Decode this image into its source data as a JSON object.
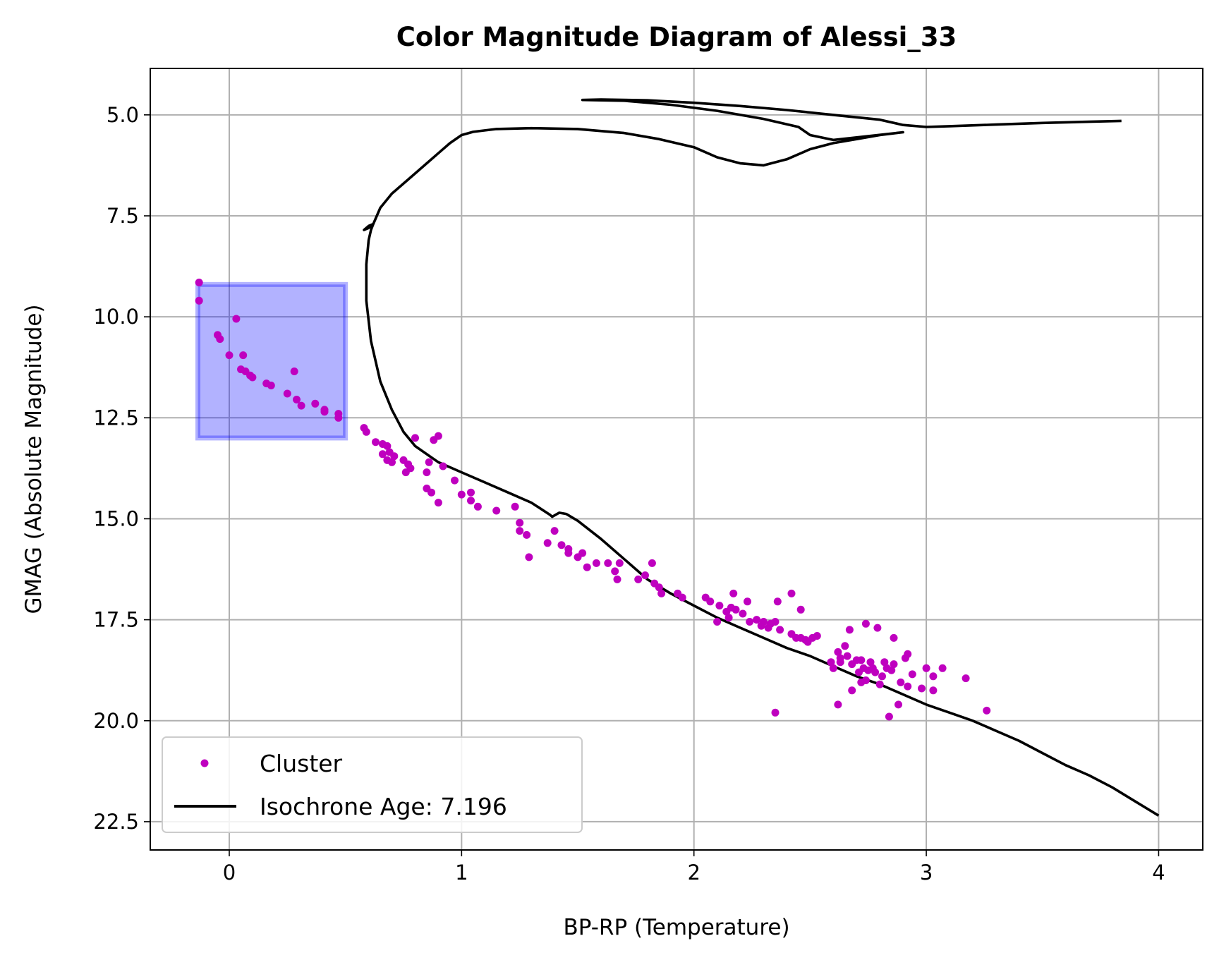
{
  "chart_data": {
    "type": "scatter",
    "title": "Color Magnitude Diagram of Alessi_33",
    "xlabel": "BP-RP (Temperature)",
    "ylabel": "GMAG (Absolute Magnitude)",
    "xlim": [
      -0.34,
      4.19
    ],
    "ylim": [
      23.2,
      3.85
    ],
    "y_inverted": true,
    "grid": true,
    "legend_position": "lower-left",
    "xticks": [
      0,
      1,
      2,
      3,
      4
    ],
    "xtick_labels": [
      "0",
      "1",
      "2",
      "3",
      "4"
    ],
    "yticks": [
      5.0,
      7.5,
      10.0,
      12.5,
      15.0,
      17.5,
      20.0,
      22.5
    ],
    "ytick_labels": [
      "5.0",
      "7.5",
      "10.0",
      "12.5",
      "15.0",
      "17.5",
      "20.0",
      "22.5"
    ],
    "highlight_region": {
      "x": [
        -0.135,
        0.5
      ],
      "y": [
        9.2,
        13.0
      ],
      "color": "#0000ff",
      "alpha": 0.3
    },
    "series": [
      {
        "name": "Cluster",
        "kind": "scatter",
        "color": "#bf00bf",
        "points": [
          [
            -0.13,
            9.15
          ],
          [
            -0.13,
            9.6
          ],
          [
            0.03,
            10.05
          ],
          [
            -0.05,
            10.45
          ],
          [
            -0.04,
            10.55
          ],
          [
            0.0,
            10.95
          ],
          [
            0.06,
            10.95
          ],
          [
            0.05,
            11.3
          ],
          [
            0.07,
            11.35
          ],
          [
            0.09,
            11.45
          ],
          [
            0.1,
            11.5
          ],
          [
            0.28,
            11.35
          ],
          [
            0.16,
            11.65
          ],
          [
            0.18,
            11.7
          ],
          [
            0.25,
            11.9
          ],
          [
            0.29,
            12.05
          ],
          [
            0.31,
            12.2
          ],
          [
            0.37,
            12.15
          ],
          [
            0.41,
            12.3
          ],
          [
            0.41,
            12.35
          ],
          [
            0.47,
            12.4
          ],
          [
            0.47,
            12.5
          ],
          [
            0.58,
            12.75
          ],
          [
            0.59,
            12.85
          ],
          [
            0.63,
            13.1
          ],
          [
            0.66,
            13.15
          ],
          [
            0.68,
            13.2
          ],
          [
            0.66,
            13.4
          ],
          [
            0.69,
            13.35
          ],
          [
            0.71,
            13.45
          ],
          [
            0.68,
            13.55
          ],
          [
            0.7,
            13.6
          ],
          [
            0.75,
            13.55
          ],
          [
            0.77,
            13.65
          ],
          [
            0.76,
            13.85
          ],
          [
            0.78,
            13.75
          ],
          [
            0.8,
            13.0
          ],
          [
            0.88,
            13.05
          ],
          [
            0.9,
            12.95
          ],
          [
            0.86,
            13.6
          ],
          [
            0.92,
            13.7
          ],
          [
            0.85,
            13.85
          ],
          [
            0.85,
            14.25
          ],
          [
            0.87,
            14.35
          ],
          [
            0.9,
            14.6
          ],
          [
            0.97,
            14.05
          ],
          [
            1.0,
            14.4
          ],
          [
            1.04,
            14.35
          ],
          [
            1.04,
            14.55
          ],
          [
            1.07,
            14.7
          ],
          [
            1.15,
            14.8
          ],
          [
            1.23,
            14.7
          ],
          [
            1.25,
            15.1
          ],
          [
            1.25,
            15.3
          ],
          [
            1.28,
            15.4
          ],
          [
            1.29,
            15.95
          ],
          [
            1.37,
            15.6
          ],
          [
            1.4,
            15.3
          ],
          [
            1.43,
            15.65
          ],
          [
            1.46,
            15.75
          ],
          [
            1.46,
            15.85
          ],
          [
            1.5,
            15.95
          ],
          [
            1.52,
            15.85
          ],
          [
            1.54,
            16.2
          ],
          [
            1.58,
            16.1
          ],
          [
            1.63,
            16.1
          ],
          [
            1.66,
            16.3
          ],
          [
            1.67,
            16.5
          ],
          [
            1.68,
            16.1
          ],
          [
            1.76,
            16.5
          ],
          [
            1.79,
            16.4
          ],
          [
            1.82,
            16.1
          ],
          [
            1.83,
            16.6
          ],
          [
            1.85,
            16.7
          ],
          [
            1.86,
            16.85
          ],
          [
            1.93,
            16.85
          ],
          [
            1.95,
            16.95
          ],
          [
            2.05,
            16.95
          ],
          [
            2.07,
            17.05
          ],
          [
            2.1,
            17.55
          ],
          [
            2.11,
            17.15
          ],
          [
            2.14,
            17.3
          ],
          [
            2.15,
            17.45
          ],
          [
            2.16,
            17.2
          ],
          [
            2.18,
            17.25
          ],
          [
            2.21,
            17.35
          ],
          [
            2.23,
            17.05
          ],
          [
            2.17,
            16.85
          ],
          [
            2.24,
            17.55
          ],
          [
            2.27,
            17.5
          ],
          [
            2.29,
            17.65
          ],
          [
            2.3,
            17.55
          ],
          [
            2.32,
            17.7
          ],
          [
            2.33,
            17.6
          ],
          [
            2.35,
            17.55
          ],
          [
            2.37,
            17.75
          ],
          [
            2.36,
            17.05
          ],
          [
            2.42,
            16.85
          ],
          [
            2.46,
            17.25
          ],
          [
            2.42,
            17.85
          ],
          [
            2.44,
            17.95
          ],
          [
            2.46,
            17.95
          ],
          [
            2.49,
            18.05
          ],
          [
            2.51,
            17.95
          ],
          [
            2.53,
            17.9
          ],
          [
            2.48,
            18.0
          ],
          [
            2.35,
            19.8
          ],
          [
            2.59,
            18.55
          ],
          [
            2.6,
            18.7
          ],
          [
            2.62,
            18.3
          ],
          [
            2.63,
            18.55
          ],
          [
            2.63,
            18.45
          ],
          [
            2.65,
            18.15
          ],
          [
            2.66,
            18.4
          ],
          [
            2.68,
            18.6
          ],
          [
            2.67,
            17.75
          ],
          [
            2.7,
            18.5
          ],
          [
            2.71,
            18.8
          ],
          [
            2.72,
            18.5
          ],
          [
            2.73,
            18.7
          ],
          [
            2.74,
            19.0
          ],
          [
            2.75,
            18.75
          ],
          [
            2.76,
            18.55
          ],
          [
            2.77,
            18.7
          ],
          [
            2.78,
            18.8
          ],
          [
            2.79,
            17.7
          ],
          [
            2.8,
            19.1
          ],
          [
            2.81,
            18.9
          ],
          [
            2.82,
            18.55
          ],
          [
            2.83,
            18.7
          ],
          [
            2.85,
            18.75
          ],
          [
            2.86,
            18.6
          ],
          [
            2.86,
            17.95
          ],
          [
            2.88,
            19.6
          ],
          [
            2.89,
            19.05
          ],
          [
            2.91,
            18.45
          ],
          [
            2.92,
            18.35
          ],
          [
            2.92,
            19.15
          ],
          [
            2.94,
            18.85
          ],
          [
            2.98,
            19.2
          ],
          [
            3.0,
            18.7
          ],
          [
            3.03,
            18.9
          ],
          [
            3.03,
            19.25
          ],
          [
            3.07,
            18.7
          ],
          [
            2.62,
            19.6
          ],
          [
            2.84,
            19.9
          ],
          [
            3.17,
            18.95
          ],
          [
            3.26,
            19.75
          ],
          [
            2.74,
            17.6
          ],
          [
            2.68,
            19.25
          ],
          [
            2.72,
            19.05
          ]
        ]
      },
      {
        "name": "Isochrone Age: 7.196",
        "kind": "line",
        "color": "#000000",
        "points": [
          [
            4.0,
            22.35
          ],
          [
            3.9,
            22.0
          ],
          [
            3.8,
            21.65
          ],
          [
            3.7,
            21.35
          ],
          [
            3.6,
            21.1
          ],
          [
            3.5,
            20.8
          ],
          [
            3.4,
            20.5
          ],
          [
            3.3,
            20.25
          ],
          [
            3.2,
            20.0
          ],
          [
            3.1,
            19.8
          ],
          [
            3.0,
            19.6
          ],
          [
            2.9,
            19.35
          ],
          [
            2.8,
            19.1
          ],
          [
            2.7,
            18.9
          ],
          [
            2.6,
            18.65
          ],
          [
            2.5,
            18.4
          ],
          [
            2.4,
            18.2
          ],
          [
            2.3,
            17.95
          ],
          [
            2.2,
            17.7
          ],
          [
            2.1,
            17.45
          ],
          [
            2.0,
            17.15
          ],
          [
            1.9,
            16.85
          ],
          [
            1.8,
            16.5
          ],
          [
            1.7,
            16.0
          ],
          [
            1.6,
            15.5
          ],
          [
            1.5,
            15.05
          ],
          [
            1.45,
            14.88
          ],
          [
            1.42,
            14.85
          ],
          [
            1.39,
            14.95
          ],
          [
            1.38,
            14.9
          ],
          [
            1.3,
            14.6
          ],
          [
            1.2,
            14.35
          ],
          [
            1.1,
            14.1
          ],
          [
            1.0,
            13.85
          ],
          [
            0.9,
            13.6
          ],
          [
            0.8,
            13.2
          ],
          [
            0.75,
            12.85
          ],
          [
            0.7,
            12.3
          ],
          [
            0.65,
            11.6
          ],
          [
            0.61,
            10.6
          ],
          [
            0.59,
            9.6
          ],
          [
            0.59,
            8.7
          ],
          [
            0.6,
            8.1
          ],
          [
            0.61,
            7.85
          ],
          [
            0.62,
            7.7
          ],
          [
            0.6,
            7.8
          ],
          [
            0.58,
            7.85
          ],
          [
            0.6,
            7.75
          ],
          [
            0.62,
            7.7
          ],
          [
            0.65,
            7.3
          ],
          [
            0.7,
            6.95
          ],
          [
            0.8,
            6.45
          ],
          [
            0.9,
            5.95
          ],
          [
            0.95,
            5.7
          ],
          [
            1.0,
            5.5
          ],
          [
            1.05,
            5.42
          ],
          [
            1.15,
            5.35
          ],
          [
            1.3,
            5.33
          ],
          [
            1.5,
            5.35
          ],
          [
            1.7,
            5.45
          ],
          [
            1.85,
            5.6
          ],
          [
            2.0,
            5.8
          ],
          [
            2.1,
            6.05
          ],
          [
            2.2,
            6.2
          ],
          [
            2.3,
            6.25
          ],
          [
            2.4,
            6.1
          ],
          [
            2.5,
            5.85
          ],
          [
            2.6,
            5.7
          ],
          [
            2.7,
            5.6
          ],
          [
            2.8,
            5.5
          ],
          [
            2.9,
            5.43
          ],
          [
            2.6,
            5.62
          ],
          [
            2.5,
            5.5
          ],
          [
            2.45,
            5.3
          ],
          [
            2.3,
            5.1
          ],
          [
            2.1,
            4.9
          ],
          [
            1.9,
            4.75
          ],
          [
            1.7,
            4.65
          ],
          [
            1.52,
            4.63
          ],
          [
            1.6,
            4.62
          ],
          [
            1.8,
            4.64
          ],
          [
            2.0,
            4.7
          ],
          [
            2.2,
            4.78
          ],
          [
            2.4,
            4.88
          ],
          [
            2.6,
            5.0
          ],
          [
            2.8,
            5.12
          ],
          [
            2.9,
            5.25
          ],
          [
            3.0,
            5.3
          ],
          [
            3.1,
            5.28
          ],
          [
            3.3,
            5.24
          ],
          [
            3.5,
            5.2
          ],
          [
            3.7,
            5.17
          ],
          [
            3.84,
            5.15
          ]
        ]
      }
    ]
  }
}
